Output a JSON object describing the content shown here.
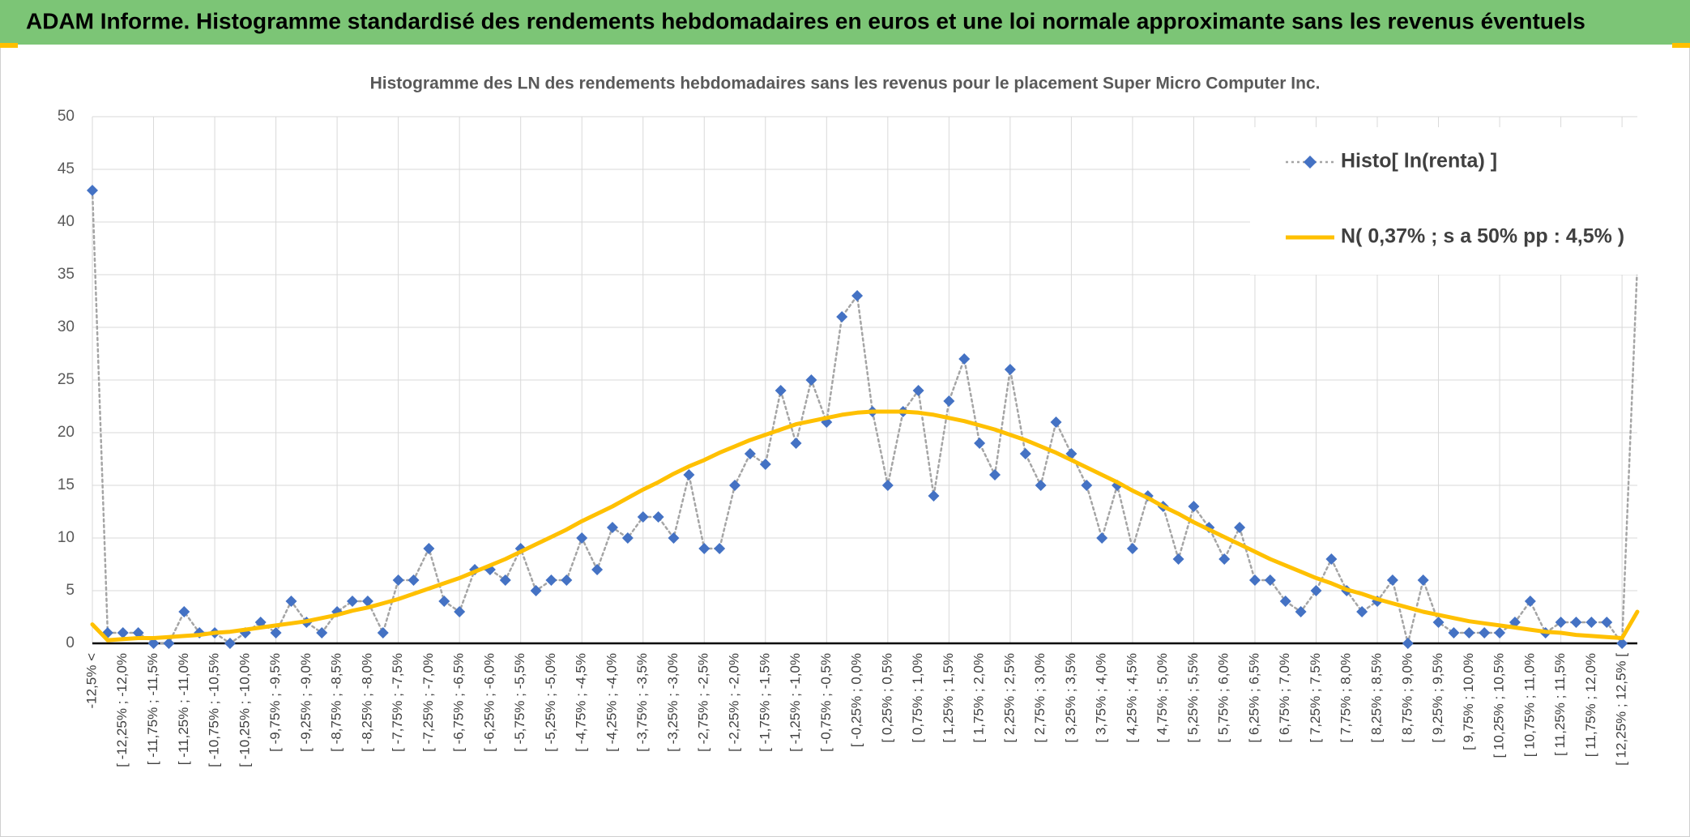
{
  "header": {
    "title": "ADAM Informe. Histogramme standardisé des rendements hebdomadaires en euros et une loi normale approximante sans les revenus éventuels"
  },
  "chart_data": {
    "type": "line",
    "title": "Histogramme des LN des rendements hebdomadaires sans les revenus pour le placement Super Micro Computer Inc.",
    "categories": [
      "-12,5% <",
      null,
      "[ -12,25% ; -12,0%",
      null,
      "[ -11,75% ; -11,5%",
      null,
      "[ -11,25% ; -11,0%",
      null,
      "[ -10,75% ; -10,5%",
      null,
      "[ -10,25% ; -10,0%",
      null,
      "[ -9,75% ; -9,5%",
      null,
      "[ -9,25% ; -9,0%",
      null,
      "[ -8,75% ; -8,5%",
      null,
      "[ -8,25% ; -8,0%",
      null,
      "[ -7,75% ; -7,5%",
      null,
      "[ -7,25% ; -7,0%",
      null,
      "[ -6,75% ; -6,5%",
      null,
      "[ -6,25% ; -6,0%",
      null,
      "[ -5,75% ; -5,5%",
      null,
      "[ -5,25% ; -5,0%",
      null,
      "[ -4,75% ; -4,5%",
      null,
      "[ -4,25% ; -4,0%",
      null,
      "[ -3,75% ; -3,5%",
      null,
      "[ -3,25% ; -3,0%",
      null,
      "[ -2,75% ; -2,5%",
      null,
      "[ -2,25% ; -2,0%",
      null,
      "[ -1,75% ; -1,5%",
      null,
      "[ -1,25% ; -1,0%",
      null,
      "[ -0,75% ; -0,5%",
      null,
      "[ -0,25% ; 0,0%",
      null,
      "[ 0,25% ; 0,5%",
      null,
      "[ 0,75% ; 1,0%",
      null,
      "[ 1,25% ; 1,5%",
      null,
      "[ 1,75% ; 2,0%",
      null,
      "[ 2,25% ; 2,5%",
      null,
      "[ 2,75% ; 3,0%",
      null,
      "[ 3,25% ; 3,5%",
      null,
      "[ 3,75% ; 4,0%",
      null,
      "[ 4,25% ; 4,5%",
      null,
      "[ 4,75% ; 5,0%",
      null,
      "[ 5,25% ; 5,5%",
      null,
      "[ 5,75% ; 6,0%",
      null,
      "[ 6,25% ; 6,5%",
      null,
      "[ 6,75% ; 7,0%",
      null,
      "[ 7,25% ; 7,5%",
      null,
      "[ 7,75% ; 8,0%",
      null,
      "[ 8,25% ; 8,5%",
      null,
      "[ 8,75% ; 9,0%",
      null,
      "[ 9,25% ; 9,5%",
      null,
      "[ 9,75% ; 10,0%",
      null,
      "[ 10,25% ; 10,5%",
      null,
      "[ 10,75% ; 11,0%",
      null,
      "[ 11,25% ; 11,5%",
      null,
      "[ 11,75% ; 12,0%",
      null,
      "[ 12,25% ; 12,5% [",
      null
    ],
    "series": [
      {
        "name": "Histo[ ln(renta) ]",
        "color": "#4472c4",
        "line_color": "#a5a5a5",
        "marker": "diamond",
        "dash": "dotted",
        "values": [
          43,
          1,
          1,
          1,
          0,
          0,
          3,
          1,
          1,
          0,
          1,
          2,
          1,
          4,
          2,
          1,
          3,
          4,
          4,
          1,
          6,
          6,
          9,
          4,
          3,
          7,
          7,
          6,
          9,
          5,
          6,
          6,
          10,
          7,
          11,
          10,
          12,
          12,
          10,
          16,
          9,
          9,
          15,
          18,
          17,
          24,
          19,
          25,
          21,
          31,
          33,
          22,
          15,
          22,
          24,
          14,
          23,
          27,
          19,
          16,
          26,
          18,
          15,
          21,
          18,
          15,
          10,
          15,
          9,
          14,
          13,
          8,
          13,
          11,
          8,
          11,
          6,
          6,
          4,
          3,
          5,
          8,
          5,
          3,
          4,
          6,
          0,
          6,
          2,
          1,
          1,
          1,
          1,
          2,
          4,
          1,
          2,
          2,
          2,
          2,
          0,
          36
        ]
      },
      {
        "name": "N( 0,37% ; s a 50% pp : 4,5% )",
        "color": "#ffc000",
        "marker": "none",
        "dash": "solid",
        "values": [
          1.8,
          0.3,
          0.4,
          0.5,
          0.5,
          0.6,
          0.7,
          0.8,
          1.0,
          1.1,
          1.3,
          1.5,
          1.7,
          1.9,
          2.1,
          2.4,
          2.7,
          3.1,
          3.4,
          3.8,
          4.2,
          4.7,
          5.2,
          5.7,
          6.2,
          6.8,
          7.4,
          8.0,
          8.7,
          9.4,
          10.1,
          10.8,
          11.6,
          12.3,
          13.0,
          13.8,
          14.6,
          15.3,
          16.1,
          16.8,
          17.4,
          18.1,
          18.7,
          19.3,
          19.8,
          20.3,
          20.8,
          21.1,
          21.4,
          21.7,
          21.9,
          22.0,
          22.0,
          22.0,
          21.9,
          21.7,
          21.4,
          21.1,
          20.7,
          20.3,
          19.8,
          19.3,
          18.7,
          18.1,
          17.4,
          16.7,
          16.0,
          15.3,
          14.5,
          13.8,
          13.0,
          12.3,
          11.5,
          10.8,
          10.1,
          9.4,
          8.7,
          8.0,
          7.4,
          6.8,
          6.2,
          5.7,
          5.1,
          4.7,
          4.2,
          3.8,
          3.4,
          3.0,
          2.7,
          2.4,
          2.1,
          1.9,
          1.7,
          1.5,
          1.3,
          1.1,
          1.0,
          0.8,
          0.7,
          0.6,
          0.5,
          3.0
        ]
      }
    ],
    "ylim": [
      0,
      50
    ],
    "yticks": [
      0,
      5,
      10,
      15,
      20,
      25,
      30,
      35,
      40,
      45,
      50
    ],
    "grid": true,
    "legend": "top-right"
  }
}
